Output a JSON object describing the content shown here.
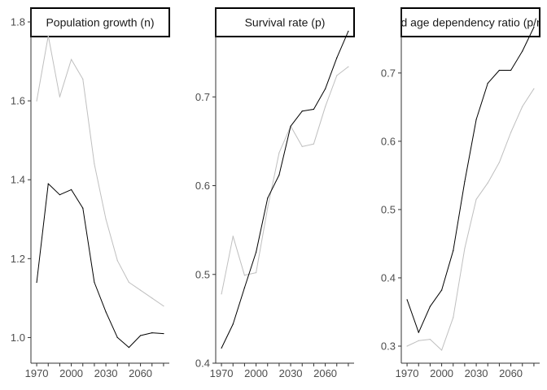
{
  "colors": {
    "series_dark": "#000000",
    "series_light": "#bfbfbf",
    "axis": "#333333",
    "text": "#4d4d4d"
  },
  "chart_data": [
    {
      "type": "line",
      "title": "Population growth (n)",
      "xlabel": "",
      "ylabel": "",
      "xlim": [
        1965,
        2085
      ],
      "ylim": [
        0.935,
        1.835
      ],
      "x_ticks": [
        1970,
        2000,
        2030,
        2060
      ],
      "x_tick_labels": [
        "1970",
        "2000",
        "2030",
        "2060"
      ],
      "y_ticks": [
        1.0,
        1.2,
        1.4,
        1.6,
        1.8
      ],
      "y_tick_labels": [
        "1.0",
        "1.2",
        "1.4",
        "1.6",
        "1.8"
      ],
      "grid": false,
      "x": [
        1970,
        1980,
        1990,
        2000,
        2010,
        2020,
        2030,
        2040,
        2050,
        2060,
        2070,
        2080
      ],
      "series": [
        {
          "color": "#bfbfbf",
          "values": [
            1.6,
            1.765,
            1.61,
            1.705,
            1.655,
            1.44,
            1.3,
            1.195,
            1.14,
            1.12,
            1.1,
            1.08
          ]
        },
        {
          "color": "#000000",
          "values": [
            1.14,
            1.39,
            1.362,
            1.375,
            1.328,
            1.14,
            1.065,
            1.0,
            0.975,
            1.005,
            1.012,
            1.01
          ]
        }
      ]
    },
    {
      "type": "line",
      "title": "Survival rate (p)",
      "xlabel": "",
      "ylabel": "",
      "xlim": [
        1965,
        2085
      ],
      "ylim": [
        0.4,
        0.8
      ],
      "x_ticks": [
        1970,
        2000,
        2030,
        2060
      ],
      "x_tick_labels": [
        "1970",
        "2000",
        "2030",
        "2060"
      ],
      "y_ticks": [
        0.4,
        0.5,
        0.6,
        0.7
      ],
      "y_tick_labels": [
        "0.4",
        "0.5",
        "0.6",
        "0.7"
      ],
      "grid": false,
      "x": [
        1970,
        1980,
        1990,
        2000,
        2010,
        2020,
        2030,
        2040,
        2050,
        2060,
        2070,
        2080
      ],
      "series": [
        {
          "color": "#bfbfbf",
          "values": [
            0.478,
            0.543,
            0.499,
            0.502,
            0.575,
            0.637,
            0.667,
            0.644,
            0.647,
            0.689,
            0.724,
            0.734
          ]
        },
        {
          "color": "#000000",
          "values": [
            0.417,
            0.444,
            0.485,
            0.525,
            0.586,
            0.612,
            0.667,
            0.684,
            0.686,
            0.709,
            0.744,
            0.774
          ]
        }
      ]
    },
    {
      "type": "line",
      "title": "Old age dependency ratio (p/n)",
      "xlabel": "",
      "ylabel": "",
      "xlim": [
        1965,
        2085
      ],
      "ylim": [
        0.275,
        0.795
      ],
      "x_ticks": [
        1970,
        2000,
        2030,
        2060
      ],
      "x_tick_labels": [
        "1970",
        "2000",
        "2030",
        "2060"
      ],
      "y_ticks": [
        0.3,
        0.4,
        0.5,
        0.6,
        0.7
      ],
      "y_tick_labels": [
        "0.3",
        "0.4",
        "0.5",
        "0.6",
        "0.7"
      ],
      "grid": false,
      "x": [
        1970,
        1980,
        1990,
        2000,
        2010,
        2020,
        2030,
        2040,
        2050,
        2060,
        2070,
        2080
      ],
      "series": [
        {
          "color": "#bfbfbf",
          "values": [
            0.3,
            0.308,
            0.31,
            0.294,
            0.342,
            0.443,
            0.515,
            0.539,
            0.569,
            0.613,
            0.651,
            0.677
          ]
        },
        {
          "color": "#000000",
          "values": [
            0.368,
            0.32,
            0.358,
            0.382,
            0.44,
            0.541,
            0.632,
            0.685,
            0.704,
            0.704,
            0.732,
            0.767
          ]
        }
      ]
    }
  ]
}
